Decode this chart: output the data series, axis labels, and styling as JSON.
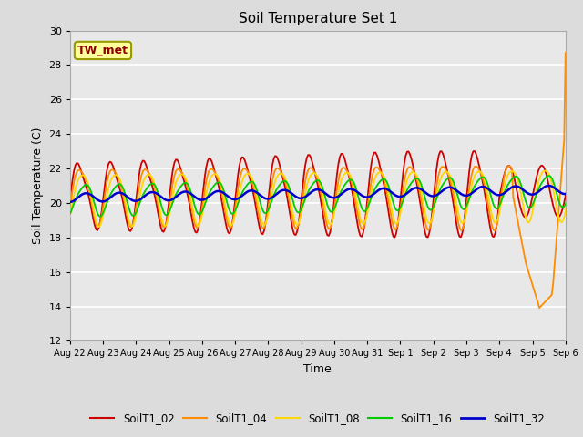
{
  "title": "Soil Temperature Set 1",
  "xlabel": "Time",
  "ylabel": "Soil Temperature (C)",
  "ylim": [
    12,
    30
  ],
  "annotation": "TW_met",
  "annotation_color": "#8B0000",
  "annotation_bg": "#FFFF99",
  "annotation_edge": "#999900",
  "bg_color": "#DCDCDC",
  "plot_bg": "#E8E8E8",
  "grid_color": "#FFFFFF",
  "series_colors": {
    "SoilT1_02": "#CC0000",
    "SoilT1_04": "#FF8C00",
    "SoilT1_08": "#FFD700",
    "SoilT1_16": "#00CC00",
    "SoilT1_32": "#0000CC"
  },
  "xtick_labels": [
    "Aug 22",
    "Aug 23",
    "Aug 24",
    "Aug 25",
    "Aug 26",
    "Aug 27",
    "Aug 28",
    "Aug 29",
    "Aug 30",
    "Aug 31",
    "Sep 1",
    "Sep 2",
    "Sep 3",
    "Sep 4",
    "Sep 5",
    "Sep 6"
  ],
  "ytick_vals": [
    12,
    14,
    16,
    18,
    20,
    22,
    24,
    26,
    28,
    30
  ],
  "num_days": 16,
  "points_per_day": 24
}
